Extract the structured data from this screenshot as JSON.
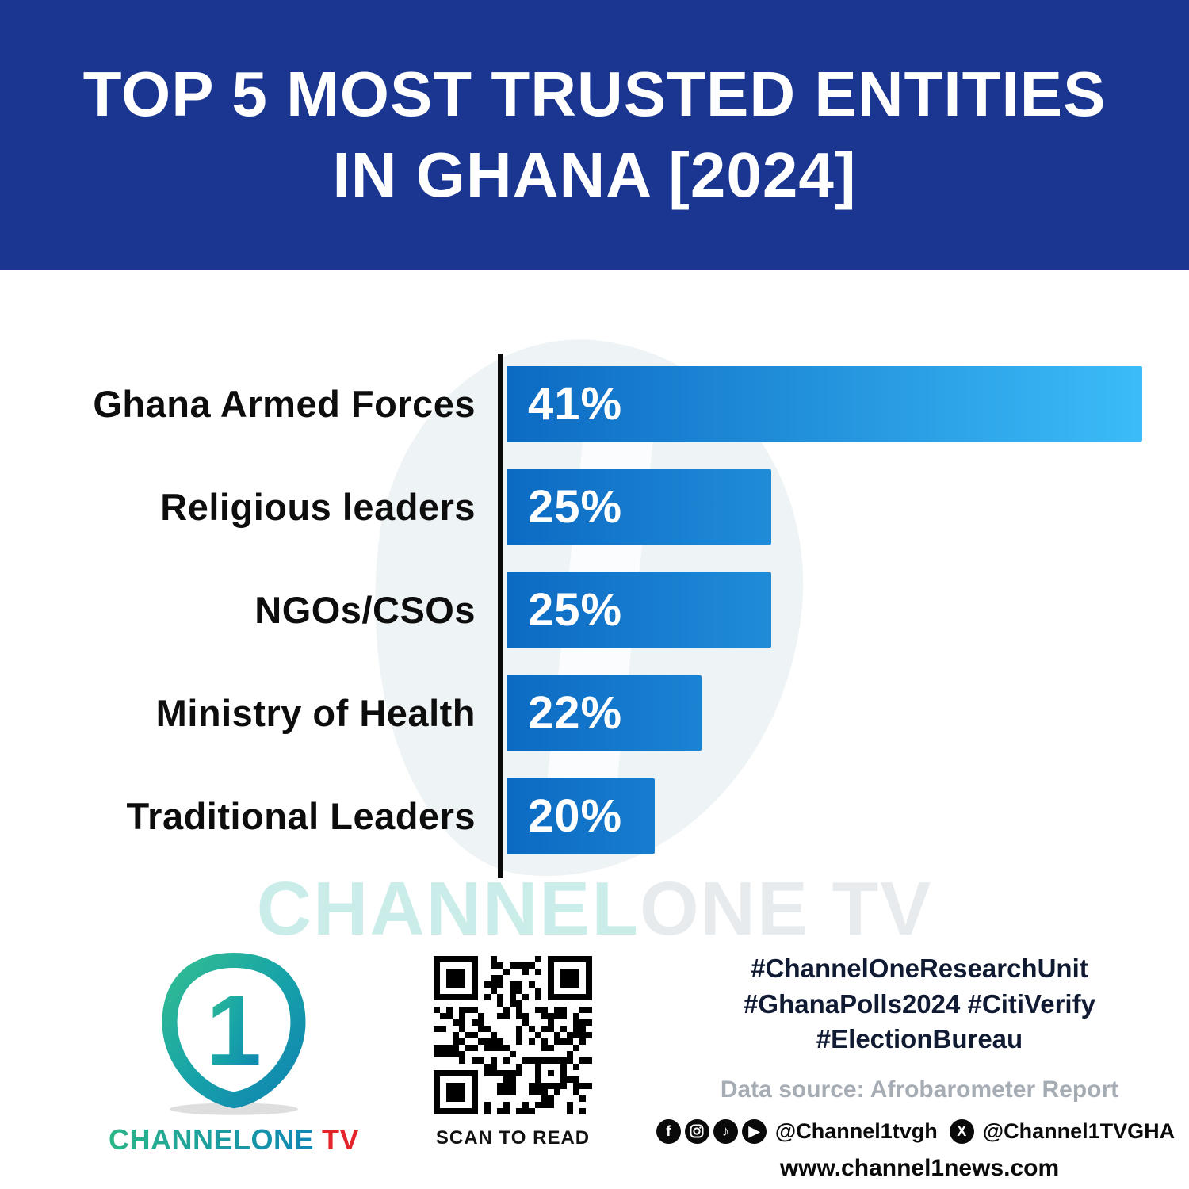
{
  "header": {
    "title_line1": "TOP 5 MOST TRUSTED ENTITIES",
    "title_line2": "IN GHANA [2024]"
  },
  "chart_data": {
    "type": "bar",
    "orientation": "horizontal",
    "title": "Top 5 Most Trusted Entities in Ghana [2024]",
    "categories": [
      "Ghana Armed Forces",
      "Religious leaders",
      "NGOs/CSOs",
      "Ministry of Health",
      "Traditional Leaders"
    ],
    "values": [
      41,
      25,
      25,
      22,
      20
    ],
    "value_labels": [
      "41%",
      "25%",
      "25%",
      "22%",
      "20%"
    ],
    "unit": "%",
    "xlim": [
      0,
      41
    ],
    "grid": false,
    "legend": false,
    "bar_color_start": "#0C6AC2",
    "bar_color_end": "#3CBDF9",
    "axis_color": "#0A0A0A"
  },
  "watermark": {
    "teal": "CHANNEL",
    "gray": "ONE TV"
  },
  "footer": {
    "brand_name": "CHANNELONE",
    "brand_tv": "TV",
    "logo_digit": "1",
    "qr_caption": "SCAN TO READ",
    "hashtags": [
      "#ChannelOneResearchUnit",
      "#GhanaPolls2024 #CitiVerify",
      "#ElectionBureau"
    ],
    "data_source": "Data source: Afrobarometer Report",
    "social_handle_1": "@Channel1tvgh",
    "social_handle_2": "@Channel1TVGHA",
    "website": "www.channel1news.com",
    "icons": {
      "facebook": "f",
      "tiktok": "♪",
      "youtube": "▶",
      "x": "X"
    }
  },
  "colors": {
    "header_bg": "#1A3690",
    "brand_teal": "#2BB687",
    "brand_blue": "#0F86B5",
    "brand_red": "#E3242B",
    "hashtag_color": "#101B33",
    "source_gray": "#A6ACB4"
  }
}
